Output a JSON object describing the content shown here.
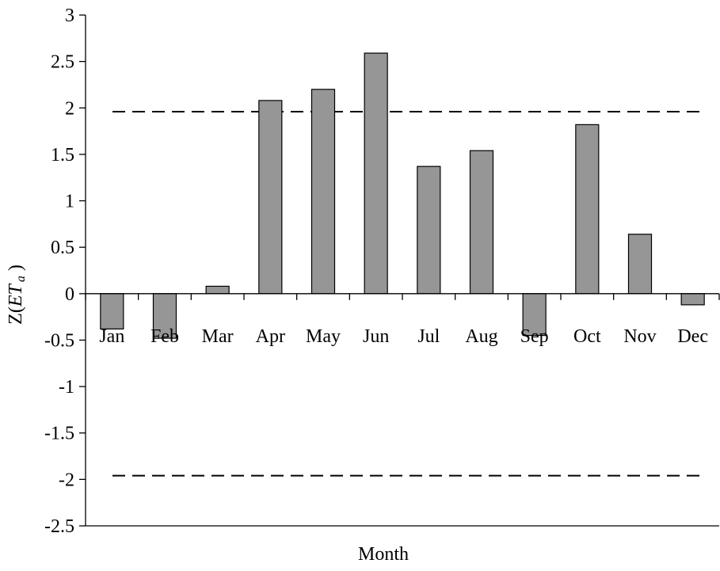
{
  "chart_data": {
    "type": "bar",
    "title": "",
    "xlabel": "Month",
    "ylabel": {
      "prefix": "Z(",
      "main": "ET",
      "subscript": "a",
      "suffix": " )"
    },
    "categories": [
      "Jan",
      "Feb",
      "Mar",
      "Apr",
      "May",
      "Jun",
      "Jul",
      "Aug",
      "Sep",
      "Oct",
      "Nov",
      "Dec"
    ],
    "values": [
      -0.38,
      -0.48,
      0.08,
      2.08,
      2.2,
      2.59,
      1.37,
      1.54,
      -0.45,
      1.82,
      0.64,
      -0.12
    ],
    "ylim": [
      -2.5,
      3
    ],
    "yticks": [
      3,
      2.5,
      2,
      1.5,
      1,
      0.5,
      0,
      -0.5,
      -1,
      -1.5,
      -2,
      -2.5
    ],
    "ytick_labels": [
      "3",
      "2.5",
      "2",
      "1.5",
      "1",
      "0.5",
      "0",
      "-0.5",
      "-1",
      "-1.5",
      "-2",
      "-2.5"
    ],
    "reference_lines": [
      1.96,
      -1.96
    ],
    "bar_color": "#969696",
    "bar_edge_color": "#000000",
    "grid": false,
    "legend": "none"
  }
}
